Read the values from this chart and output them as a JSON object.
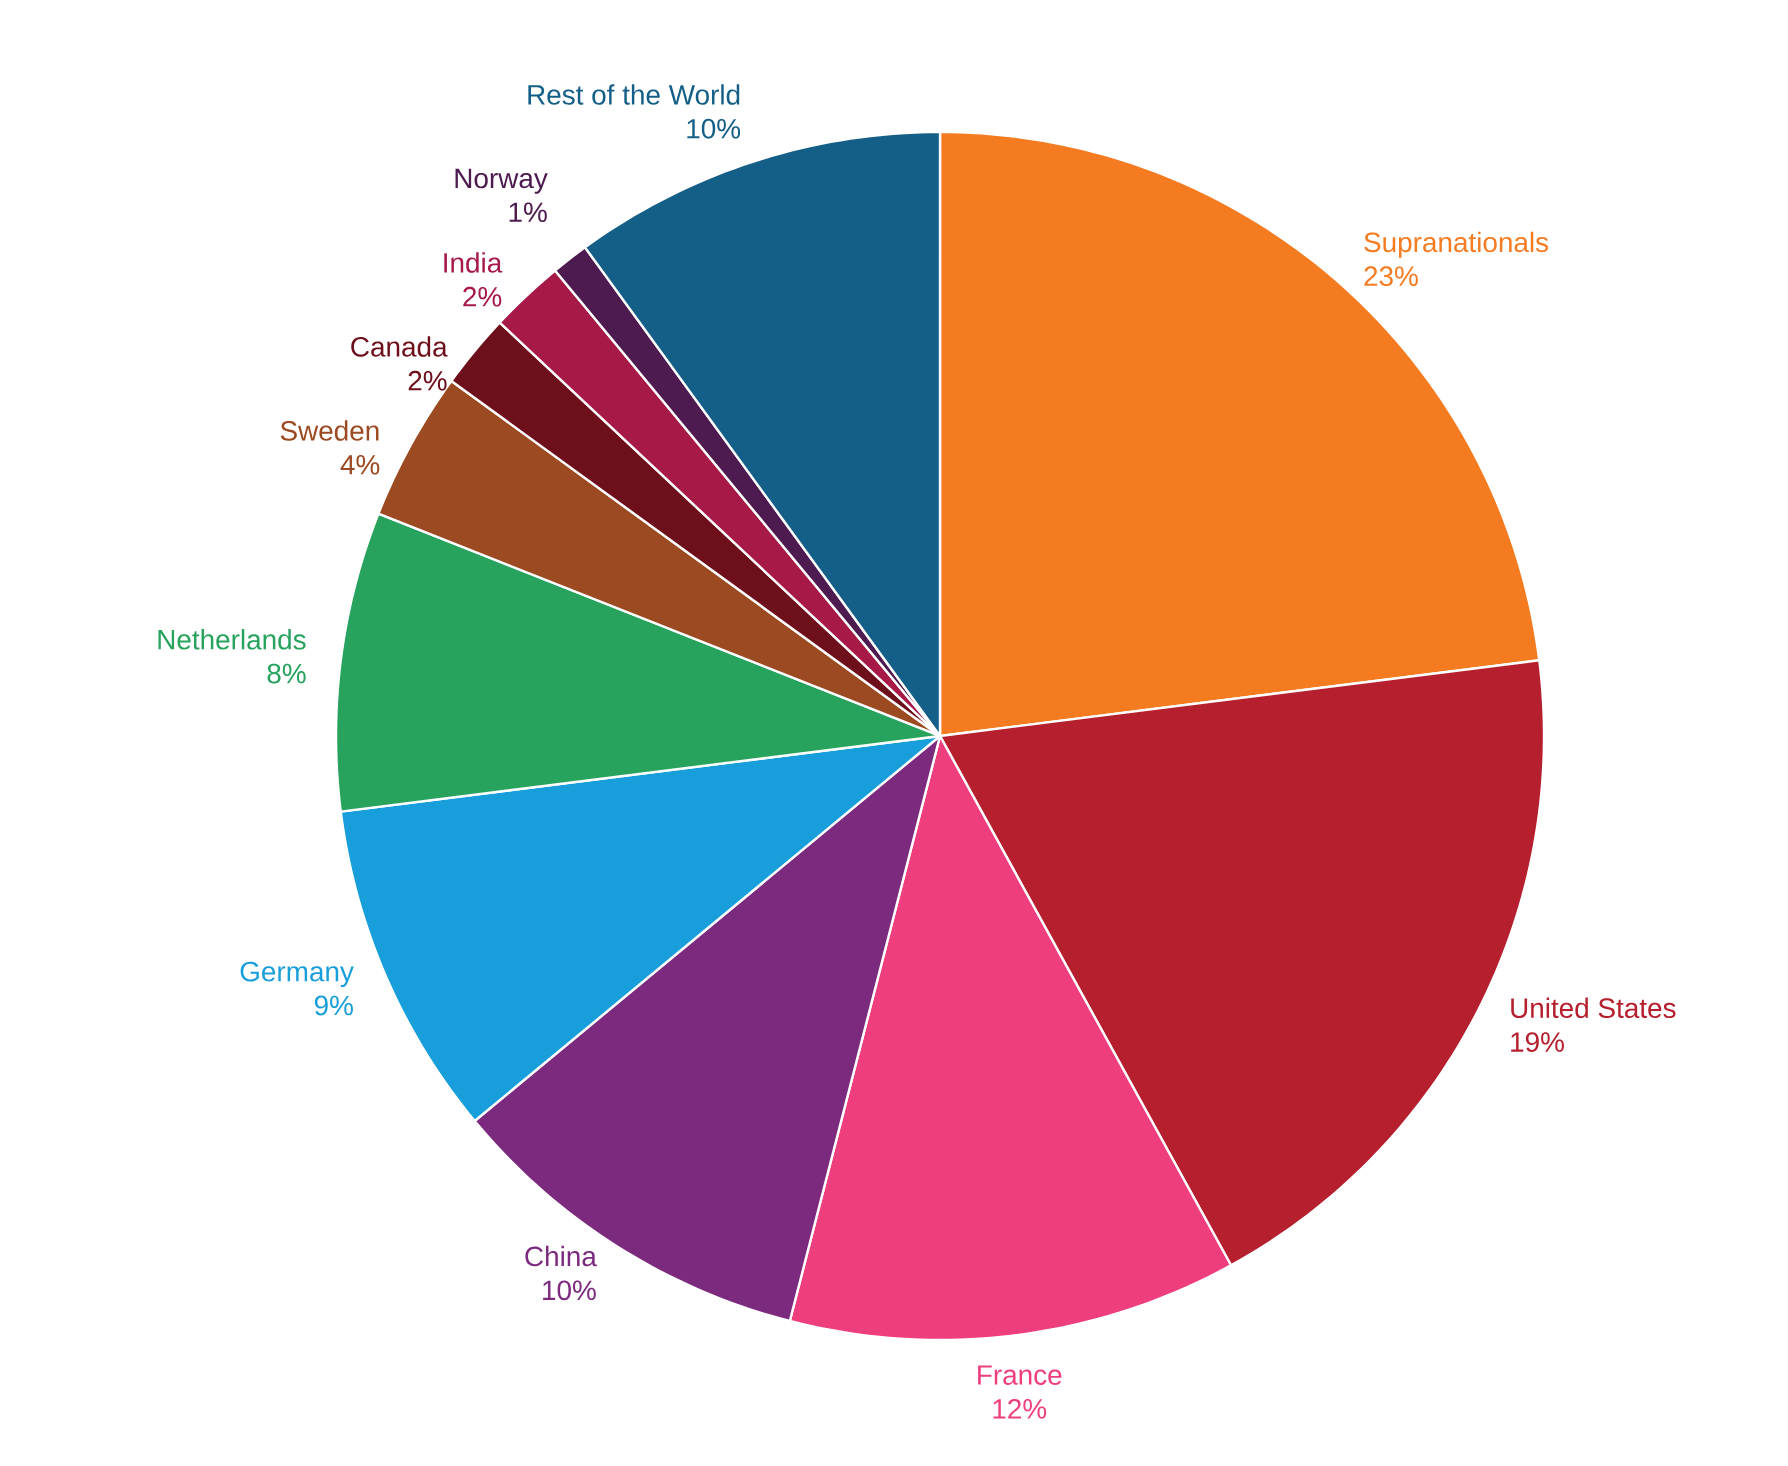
{
  "chart_data": {
    "type": "pie",
    "categories": [
      "Supranationals",
      "United States",
      "France",
      "China",
      "Germany",
      "Netherlands",
      "Sweden",
      "Canada",
      "India",
      "Norway",
      "Rest of the World"
    ],
    "values": [
      23,
      19,
      12,
      10,
      9,
      8,
      4,
      2,
      2,
      1,
      10
    ],
    "value_labels": [
      "23%",
      "19%",
      "12%",
      "10%",
      "9%",
      "8%",
      "4%",
      "2%",
      "2%",
      "1%",
      "10%"
    ],
    "colors": [
      "#f47b20",
      "#b51f2e",
      "#ee3e7d",
      "#7b2a7e",
      "#189fdb",
      "#27a35e",
      "#9c4a22",
      "#6e0f1c",
      "#a71a48",
      "#4d1b4f",
      "#145f87"
    ]
  }
}
